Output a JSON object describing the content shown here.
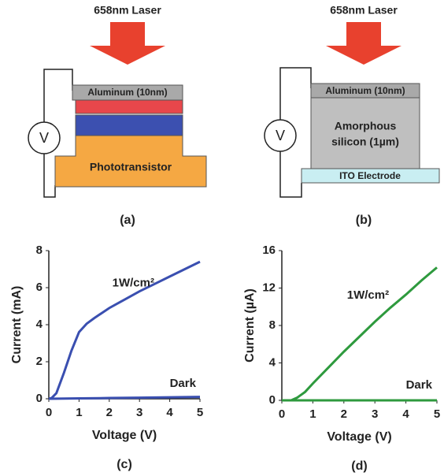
{
  "diagrams": [
    {
      "laser": "658nm Laser",
      "meter": "V",
      "top_layer": "Aluminum (10nm)",
      "base_layer": "Phototransistor",
      "caption": "(a)"
    },
    {
      "laser": "658nm Laser",
      "meter": "V",
      "top_layer": "Aluminum (10nm)",
      "middle_layer": [
        "Amorphous",
        "silicon (1µm)"
      ],
      "base_layer": "ITO Electrode",
      "caption": "(b)"
    }
  ],
  "chart_data": [
    {
      "type": "line",
      "caption": "(c)",
      "x_label": "Voltage (V)",
      "y_label": "Current (mA)",
      "xlim": [
        0,
        5
      ],
      "xticks": [
        0,
        1,
        2,
        3,
        4,
        5
      ],
      "ylim": [
        0,
        8
      ],
      "yticks": [
        0,
        2,
        4,
        6,
        8
      ],
      "series": [
        {
          "name": "1W/cm²",
          "color": "#3a4fb0",
          "x": [
            0,
            0.1,
            0.25,
            0.5,
            0.75,
            1,
            1.25,
            1.5,
            2,
            2.5,
            3,
            3.5,
            4,
            4.5,
            5
          ],
          "values": [
            0,
            0.05,
            0.3,
            1.4,
            2.6,
            3.6,
            4.05,
            4.35,
            4.9,
            5.35,
            5.8,
            6.2,
            6.6,
            7.0,
            7.4
          ]
        },
        {
          "name": "Dark",
          "color": "#3a4fb0",
          "x": [
            0,
            1,
            2,
            3,
            4,
            5
          ],
          "values": [
            0,
            0.02,
            0.04,
            0.06,
            0.08,
            0.1
          ]
        }
      ]
    },
    {
      "type": "line",
      "caption": "(d)",
      "x_label": "Voltage (V)",
      "y_label": "Current (µA)",
      "xlim": [
        0,
        5
      ],
      "xticks": [
        0,
        1,
        2,
        3,
        4,
        5
      ],
      "ylim": [
        0,
        16
      ],
      "yticks": [
        0,
        4,
        8,
        12,
        16
      ],
      "series": [
        {
          "name": "1W/cm²",
          "color": "#2e9a3e",
          "x": [
            0,
            0.3,
            0.5,
            0.75,
            1,
            1.5,
            2,
            2.5,
            3,
            3.5,
            4,
            4.5,
            5
          ],
          "values": [
            0,
            0,
            0.3,
            0.9,
            1.8,
            3.5,
            5.2,
            6.8,
            8.4,
            9.9,
            11.3,
            12.8,
            14.2
          ]
        },
        {
          "name": "Dark",
          "color": "#2e9a3e",
          "x": [
            0,
            1,
            2,
            3,
            4,
            5
          ],
          "values": [
            0,
            0,
            0,
            0,
            0,
            0
          ]
        }
      ]
    }
  ]
}
